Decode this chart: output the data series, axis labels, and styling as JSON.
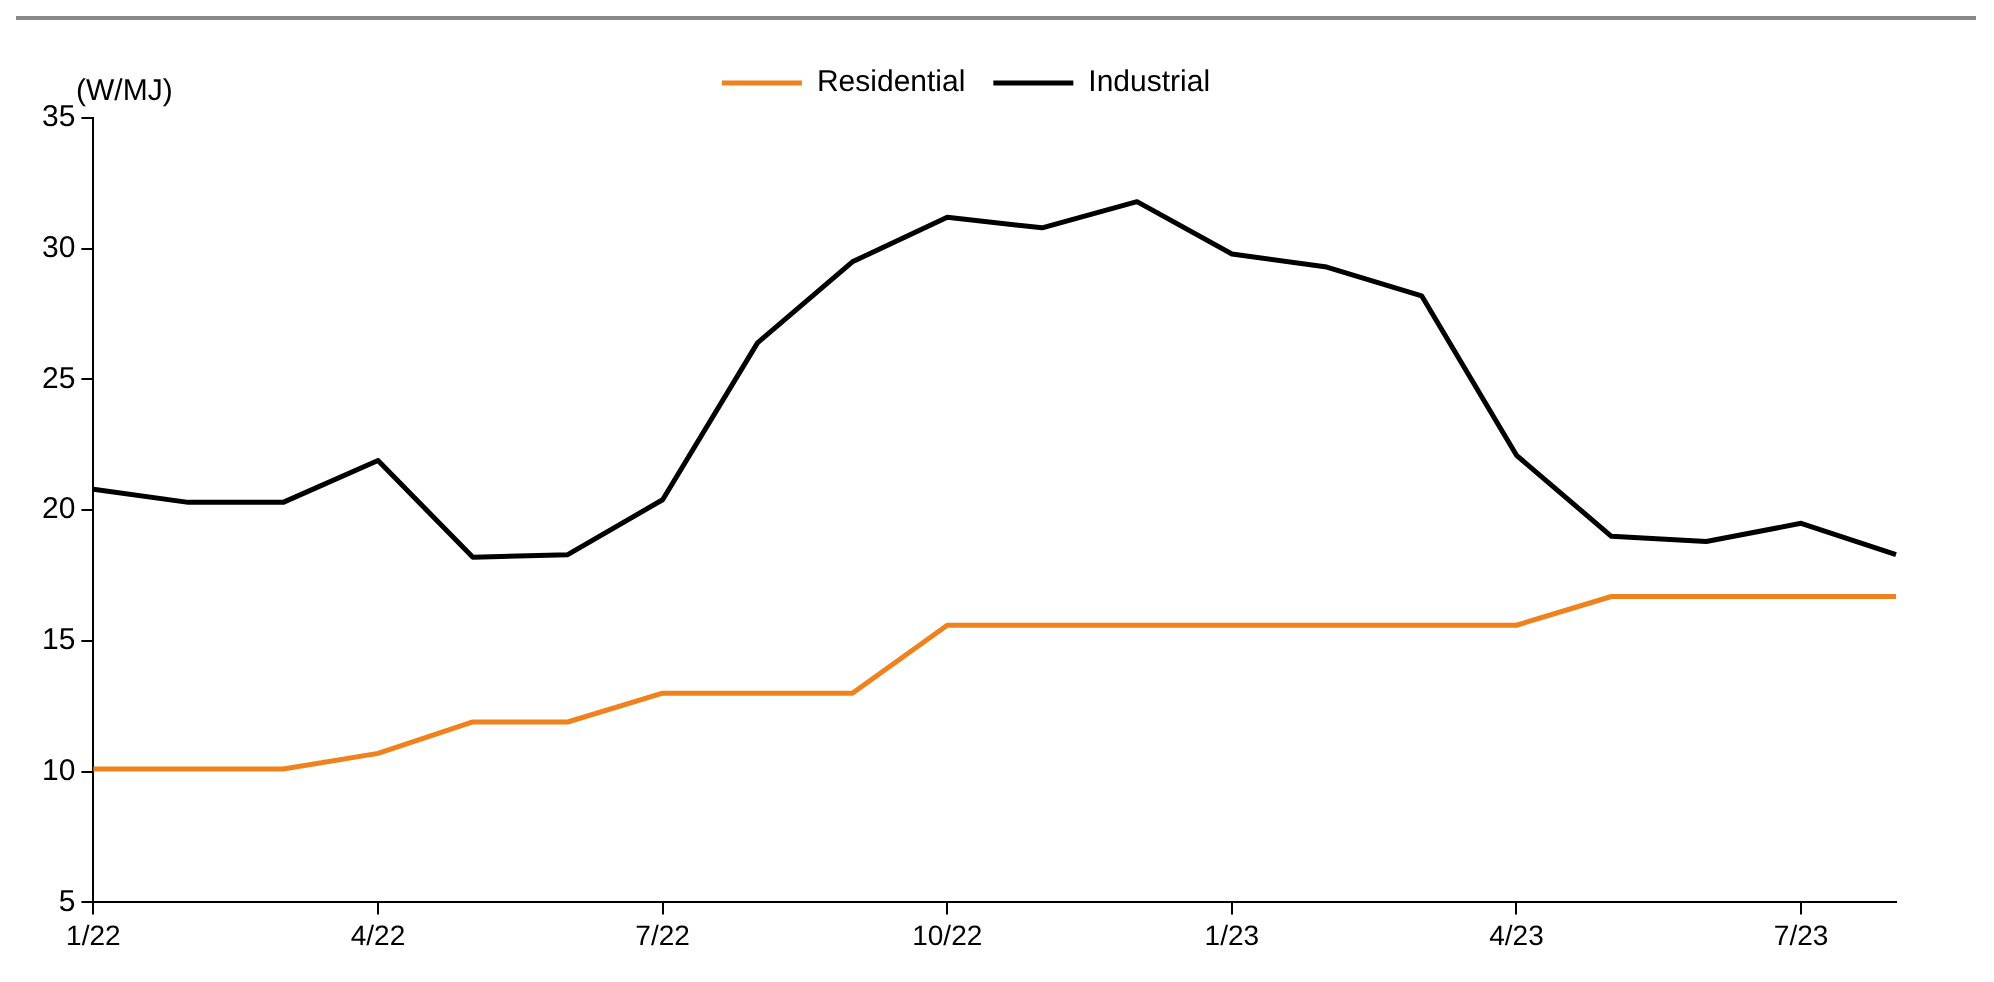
{
  "chart_data": {
    "type": "line",
    "ylabel": "(W/MJ)",
    "categories": [
      "1/22",
      null,
      null,
      "4/22",
      null,
      null,
      "7/22",
      null,
      null,
      "10/22",
      null,
      null,
      "1/23",
      null,
      null,
      "4/23",
      null,
      null,
      "7/23",
      null
    ],
    "series": [
      {
        "name": "Residential",
        "color": "#f0821e",
        "values": [
          10.1,
          10.1,
          10.1,
          10.7,
          11.9,
          11.9,
          13.0,
          13.0,
          13.0,
          15.6,
          15.6,
          15.6,
          15.6,
          15.6,
          15.6,
          15.6,
          16.7,
          16.7,
          16.7,
          16.7
        ]
      },
      {
        "name": "Industrial",
        "color": "#000000",
        "values": [
          20.8,
          20.3,
          20.3,
          21.9,
          18.2,
          18.3,
          20.4,
          26.4,
          29.5,
          31.2,
          30.8,
          31.8,
          29.8,
          29.3,
          28.2,
          22.1,
          19.0,
          18.8,
          19.5,
          18.3
        ]
      }
    ],
    "ylim": [
      5,
      35
    ],
    "yticks": [
      5,
      10,
      15,
      20,
      25,
      30,
      35
    ],
    "grid": false,
    "legend": "top",
    "marker": "none",
    "line_style": "solid"
  }
}
